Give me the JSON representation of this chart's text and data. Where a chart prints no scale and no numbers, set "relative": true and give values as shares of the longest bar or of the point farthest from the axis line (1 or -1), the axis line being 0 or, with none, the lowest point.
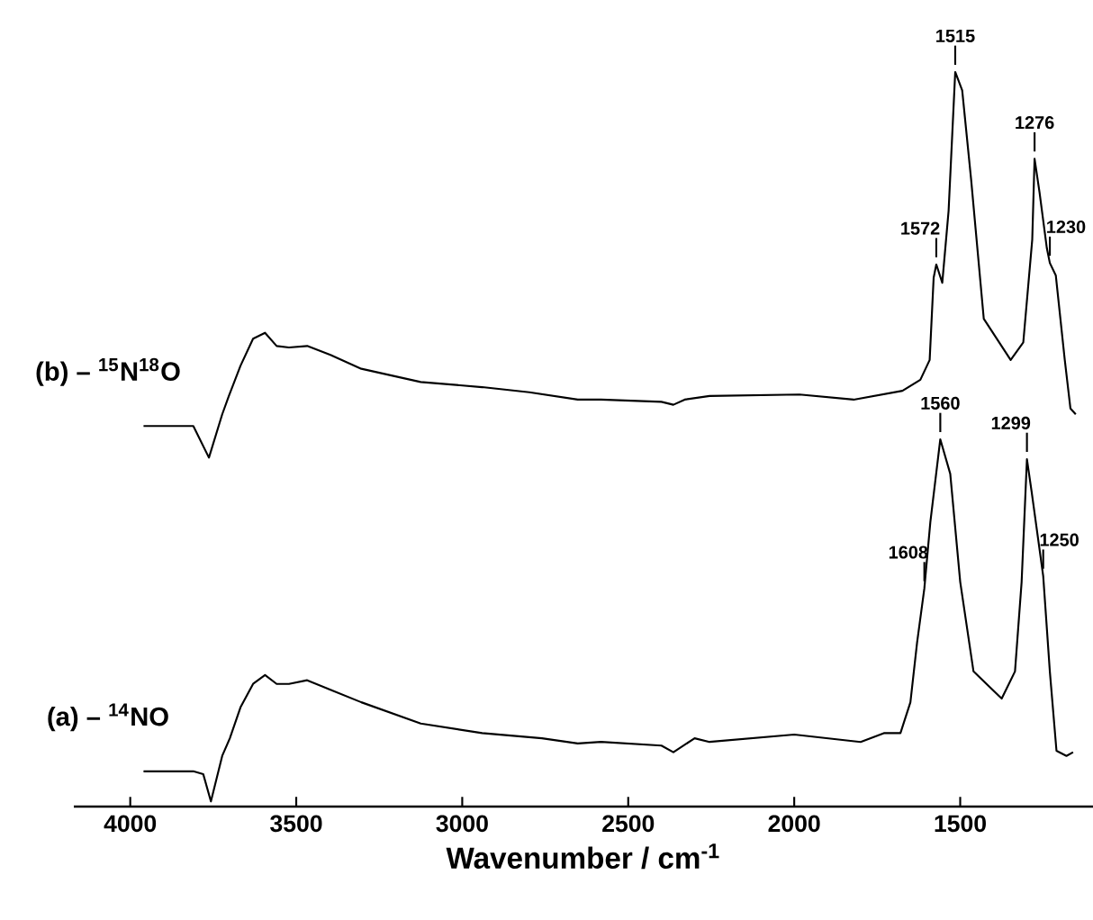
{
  "chart_data": {
    "type": "line",
    "relative": true,
    "xlabel": "Wavenumber / cm$^{-1}$",
    "xlim": [
      4170,
      1100
    ],
    "xticks": [
      4000,
      3500,
      3000,
      2500,
      2000,
      1500
    ],
    "series": [
      {
        "name": "(b) – $^{15}$N$^{18}$O",
        "color": "#000000",
        "x": [
          3960,
          3810,
          3763,
          3723,
          3703,
          3668,
          3630,
          3594,
          3559,
          3522,
          3467,
          3397,
          3304,
          3125,
          2940,
          2798,
          2652,
          2582,
          2400,
          2364,
          2330,
          2255,
          1984,
          1821,
          1674,
          1620,
          1592,
          1580,
          1572,
          1554,
          1535,
          1515,
          1494,
          1467,
          1429,
          1348,
          1310,
          1283,
          1276,
          1261,
          1239,
          1230,
          1212,
          1185,
          1168,
          1152
        ],
        "values": [
          0.518,
          0.518,
          0.475,
          0.534,
          0.559,
          0.6,
          0.637,
          0.645,
          0.627,
          0.625,
          0.627,
          0.615,
          0.596,
          0.578,
          0.571,
          0.564,
          0.554,
          0.554,
          0.551,
          0.547,
          0.554,
          0.559,
          0.561,
          0.554,
          0.566,
          0.581,
          0.608,
          0.72,
          0.738,
          0.713,
          0.811,
          1.0,
          0.975,
          0.853,
          0.664,
          0.608,
          0.632,
          0.772,
          0.882,
          0.836,
          0.76,
          0.74,
          0.723,
          0.608,
          0.542,
          0.534
        ]
      },
      {
        "name": "(a) – $^{14}$NO",
        "color": "#000000",
        "x": [
          3960,
          3810,
          3780,
          3757,
          3723,
          3700,
          3668,
          3630,
          3594,
          3559,
          3522,
          3467,
          3397,
          3304,
          3125,
          2940,
          2760,
          2652,
          2582,
          2400,
          2364,
          2300,
          2255,
          2000,
          1800,
          1730,
          1680,
          1650,
          1630,
          1608,
          1590,
          1560,
          1530,
          1500,
          1460,
          1375,
          1335,
          1315,
          1299,
          1285,
          1250,
          1230,
          1210,
          1180,
          1160
        ],
        "values": [
          0.048,
          0.048,
          0.044,
          0.007,
          0.069,
          0.093,
          0.135,
          0.167,
          0.179,
          0.167,
          0.167,
          0.172,
          0.159,
          0.142,
          0.113,
          0.1,
          0.093,
          0.086,
          0.088,
          0.083,
          0.074,
          0.093,
          0.088,
          0.098,
          0.088,
          0.1,
          0.1,
          0.142,
          0.223,
          0.297,
          0.387,
          0.5,
          0.453,
          0.306,
          0.184,
          0.147,
          0.184,
          0.306,
          0.473,
          0.429,
          0.314,
          0.184,
          0.076,
          0.069,
          0.074
        ]
      }
    ],
    "annotations": [
      {
        "text": "1515",
        "x": 1515,
        "y": 1.0
      },
      {
        "text": "1276",
        "x": 1276,
        "y": 0.882
      },
      {
        "text": "1572",
        "x": 1572,
        "y": 0.738
      },
      {
        "text": "1230",
        "x": 1230,
        "y": 0.74
      },
      {
        "text": "1560",
        "x": 1560,
        "y": 0.5
      },
      {
        "text": "1299",
        "x": 1299,
        "y": 0.473
      },
      {
        "text": "1608",
        "x": 1608,
        "y": 0.297
      },
      {
        "text": "1250",
        "x": 1250,
        "y": 0.314
      }
    ]
  }
}
